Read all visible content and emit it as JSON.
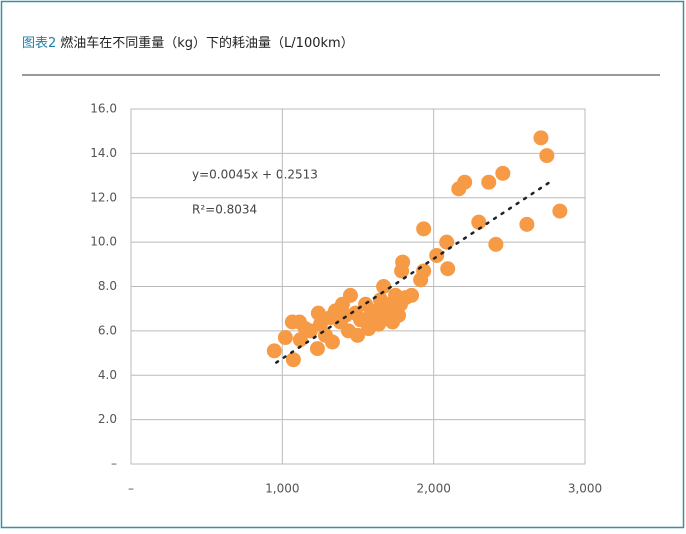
{
  "chart_data": {
    "type": "scatter",
    "figure_label": "图表2",
    "title": "燃油车在不同重量（kg）下的耗油量（L/100km）",
    "x": [
      947,
      1073,
      1232,
      1331,
      1497,
      1066,
      1113,
      1238,
      1450,
      1669,
      1788,
      1795,
      1854,
      1914,
      1934,
      1934,
      2020,
      2086,
      2093,
      2166,
      2205,
      2298,
      2364,
      2411,
      2457,
      2616,
      2709,
      2748,
      2834,
      1119,
      1185,
      1252,
      1318,
      1351,
      1384,
      1417,
      1483,
      1517,
      1550,
      1583,
      1616,
      1649,
      1682,
      1715,
      1728,
      1748,
      1781,
      1815,
      1768,
      1702,
      1636,
      1570,
      1437,
      1285,
      1152,
      1020,
      1397
    ],
    "values": [
      5.1,
      4.7,
      5.2,
      5.5,
      5.8,
      6.4,
      6.4,
      6.8,
      7.6,
      8.0,
      8.7,
      9.1,
      7.6,
      8.3,
      8.7,
      10.6,
      9.4,
      10.0,
      8.8,
      12.4,
      12.7,
      10.9,
      12.7,
      9.9,
      13.1,
      10.8,
      14.7,
      13.9,
      11.4,
      5.6,
      6.0,
      6.3,
      6.6,
      6.9,
      6.4,
      6.7,
      6.8,
      6.5,
      7.2,
      6.7,
      6.9,
      7.4,
      6.8,
      7.2,
      6.4,
      7.6,
      7.2,
      7.5,
      6.7,
      6.6,
      6.3,
      6.1,
      6.0,
      5.8,
      6.1,
      5.7,
      7.2
    ],
    "color": "#f79a45",
    "trendline": {
      "slope": 0.0045,
      "intercept": 0.2513,
      "xlim": [
        960,
        2790
      ],
      "color": "#222"
    },
    "annotations": [
      "y=0.0045x + 0.2513",
      "R²=0.8034"
    ],
    "xlim": [
      0,
      3000
    ],
    "xticks": [
      {
        "value": 0,
        "label": "–"
      },
      {
        "value": 1000,
        "label": "1,000"
      },
      {
        "value": 2000,
        "label": "2,000"
      },
      {
        "value": 3000,
        "label": "3,000"
      }
    ],
    "ylim": [
      0,
      16
    ],
    "yticks": [
      {
        "value": 0,
        "label": "–"
      },
      {
        "value": 2,
        "label": "2.0"
      },
      {
        "value": 4,
        "label": "4.0"
      },
      {
        "value": 6,
        "label": "6.0"
      },
      {
        "value": 8,
        "label": "8.0"
      },
      {
        "value": 10,
        "label": "10.0"
      },
      {
        "value": 12,
        "label": "12.0"
      },
      {
        "value": 14,
        "label": "14.0"
      },
      {
        "value": 16,
        "label": "16.0"
      }
    ],
    "grid": true
  }
}
